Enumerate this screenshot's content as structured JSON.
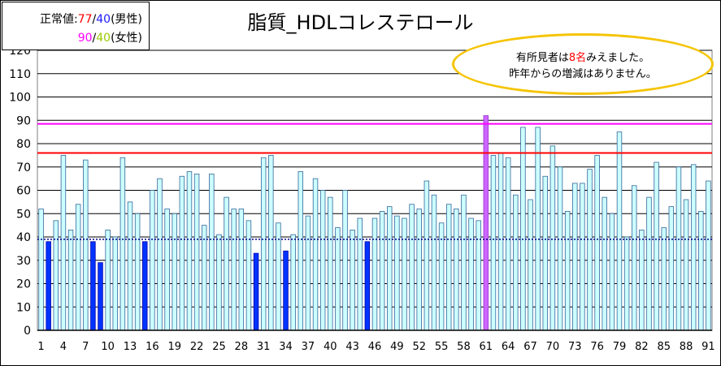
{
  "legend": {
    "label": "正常値:",
    "male_high": "77",
    "male_low": "40",
    "male_label": "(男性)",
    "female_high": "90",
    "female_low": "40",
    "female_label": "(女性)",
    "slash": "/"
  },
  "note": {
    "line1_pre": "有所見者は",
    "line1_num": "8名",
    "line1_post": "みえました。",
    "line2": "昨年からの増減はありません。"
  },
  "colors": {
    "normal_bar": "#ccffff",
    "low_bar": "#0033ff",
    "high_bar": "#cc66ff",
    "male_line": "#ff0000",
    "female_line": "#ff00ff",
    "low_line": "#000080",
    "bubble_border": "#f5c400"
  },
  "chart_data": {
    "type": "bar",
    "title": "脂質_HDLコレステロール",
    "xlabel": "",
    "ylabel": "",
    "ylim": [
      0,
      120
    ],
    "yticks": [
      0,
      10,
      20,
      30,
      40,
      50,
      60,
      70,
      80,
      90,
      100,
      110,
      120
    ],
    "xtick_labels": [
      "1",
      "4",
      "7",
      "10",
      "13",
      "16",
      "19",
      "22",
      "25",
      "28",
      "31",
      "34",
      "37",
      "40",
      "43",
      "46",
      "49",
      "52",
      "55",
      "58",
      "61",
      "64",
      "67",
      "70",
      "73",
      "76",
      "79",
      "82",
      "85",
      "88",
      "91"
    ],
    "reference_lines": [
      {
        "label": "男性上限",
        "value": 76
      },
      {
        "label": "女性上限",
        "value": 88.5
      },
      {
        "label": "下限",
        "value": 39
      }
    ],
    "x": [
      1,
      2,
      3,
      4,
      5,
      6,
      7,
      8,
      9,
      10,
      11,
      12,
      13,
      14,
      15,
      16,
      17,
      18,
      19,
      20,
      21,
      22,
      23,
      24,
      25,
      26,
      27,
      28,
      29,
      30,
      31,
      32,
      33,
      34,
      35,
      36,
      37,
      38,
      39,
      40,
      41,
      42,
      43,
      44,
      45,
      46,
      47,
      48,
      49,
      50,
      51,
      52,
      53,
      54,
      55,
      56,
      57,
      58,
      59,
      60,
      61,
      62,
      63,
      64,
      65,
      66,
      67,
      68,
      69,
      70,
      71,
      72,
      73,
      74,
      75,
      76,
      77,
      78,
      79,
      80,
      81,
      82,
      83,
      84,
      85,
      86,
      87,
      88,
      89,
      90,
      91
    ],
    "values": [
      52,
      38,
      47,
      75,
      43,
      54,
      73,
      38,
      29,
      43,
      40,
      74,
      55,
      50,
      38,
      60,
      65,
      52,
      50,
      66,
      68,
      67,
      45,
      67,
      41,
      57,
      52,
      52,
      47,
      33,
      74,
      75,
      46,
      34,
      41,
      68,
      49,
      65,
      60,
      57,
      44,
      60,
      43,
      48,
      38,
      48,
      51,
      53,
      49,
      48,
      54,
      52,
      64,
      58,
      46,
      54,
      52,
      58,
      48,
      47,
      92,
      75,
      76,
      74,
      58,
      87,
      56,
      87,
      66,
      79,
      70,
      51,
      63,
      63,
      69,
      75,
      57,
      50,
      85,
      40,
      62,
      43,
      57,
      72,
      44,
      53,
      70,
      56,
      71,
      51,
      64
    ],
    "categories": [
      "normal",
      "low",
      "normal",
      "normal",
      "normal",
      "normal",
      "normal",
      "low",
      "low",
      "normal",
      "normal",
      "normal",
      "normal",
      "normal",
      "low",
      "normal",
      "normal",
      "normal",
      "normal",
      "normal",
      "normal",
      "normal",
      "normal",
      "normal",
      "normal",
      "normal",
      "normal",
      "normal",
      "normal",
      "low",
      "normal",
      "normal",
      "normal",
      "low",
      "normal",
      "normal",
      "normal",
      "normal",
      "normal",
      "normal",
      "normal",
      "normal",
      "normal",
      "normal",
      "low",
      "normal",
      "normal",
      "normal",
      "normal",
      "normal",
      "normal",
      "normal",
      "normal",
      "normal",
      "normal",
      "normal",
      "normal",
      "normal",
      "normal",
      "normal",
      "high",
      "normal",
      "normal",
      "normal",
      "normal",
      "normal",
      "normal",
      "normal",
      "normal",
      "normal",
      "normal",
      "normal",
      "normal",
      "normal",
      "normal",
      "normal",
      "normal",
      "normal",
      "normal",
      "normal",
      "normal",
      "normal",
      "normal",
      "normal",
      "normal",
      "normal",
      "normal",
      "normal",
      "normal",
      "normal",
      "normal"
    ]
  }
}
